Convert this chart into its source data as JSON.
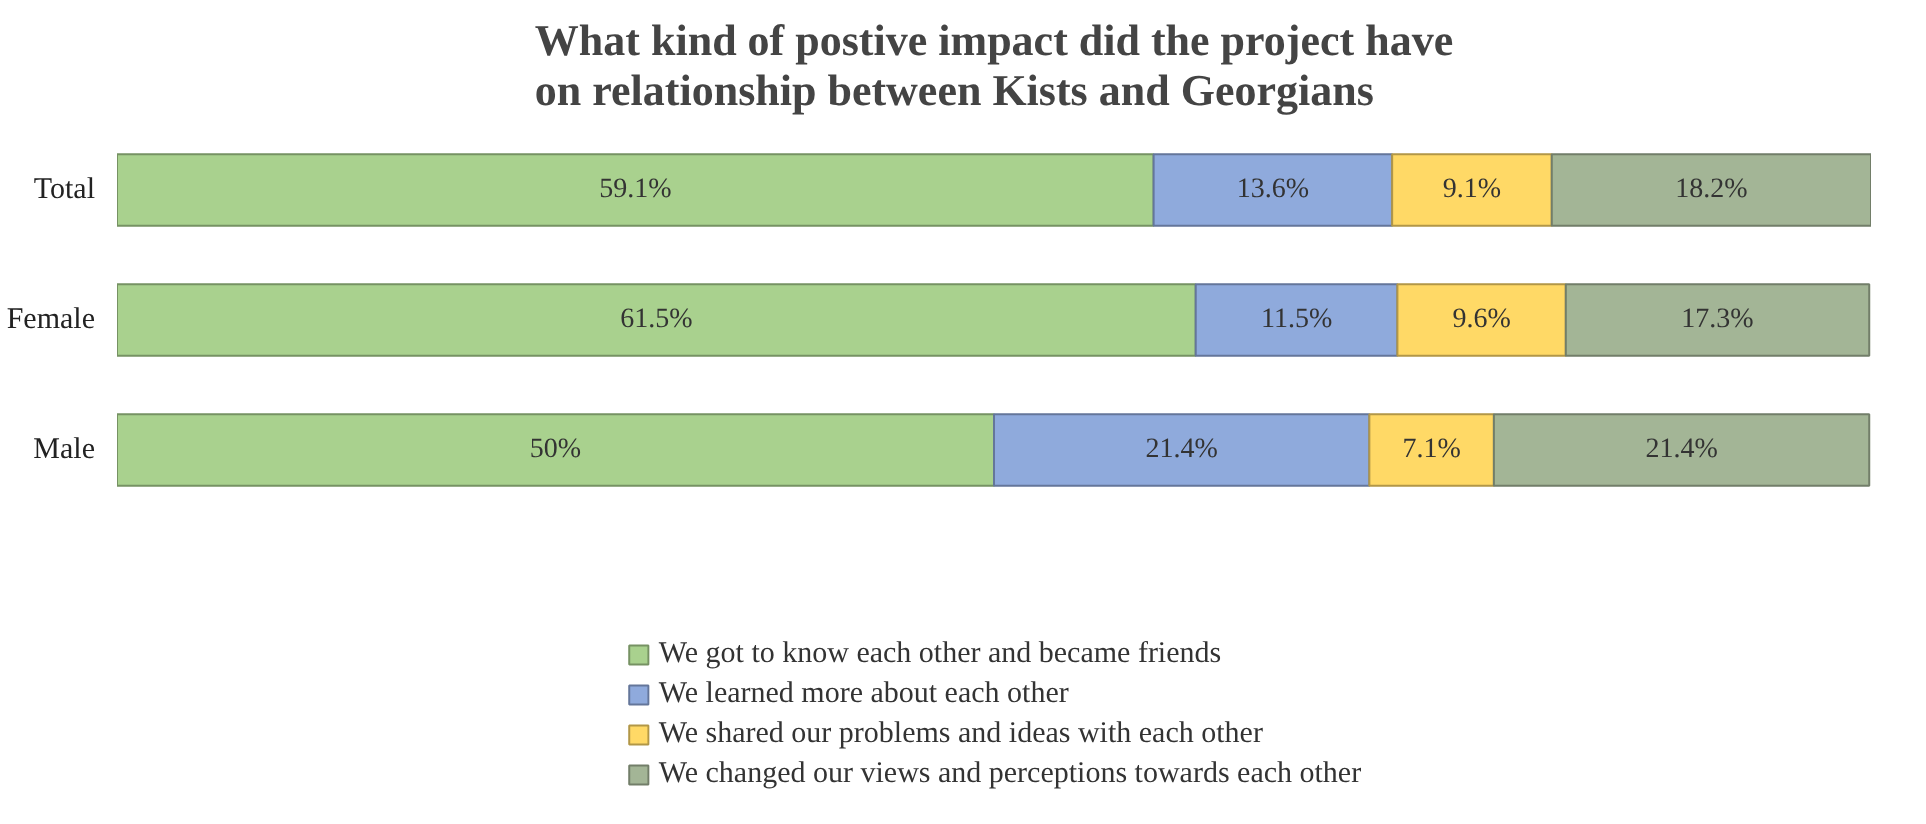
{
  "chart_data": {
    "type": "bar",
    "orientation": "horizontal",
    "stacked": true,
    "title": "What kind of postive impact did the project have on relationship between Kists and Georgians",
    "categories": [
      "Total",
      "Female",
      "Male"
    ],
    "legend": "bottom",
    "grid": false,
    "series": [
      {
        "name": "We got to know each other and became friends",
        "color": "#a9d18e",
        "values": [
          59.1,
          61.5,
          50
        ],
        "value_labels": [
          "59.1%",
          "61.5%",
          "50%"
        ]
      },
      {
        "name": "We learned more about each other",
        "color": "#8faadc",
        "values": [
          13.6,
          11.5,
          21.4
        ],
        "value_labels": [
          "13.6%",
          "11.5%",
          "21.4%"
        ]
      },
      {
        "name": "We shared our problems and ideas with each other",
        "color": "#ffd966",
        "values": [
          9.1,
          9.6,
          7.1
        ],
        "value_labels": [
          "9.1%",
          "9.6%",
          "7.1%"
        ]
      },
      {
        "name": "We changed our views and perceptions towards each other",
        "color": "#a3b596",
        "values": [
          18.2,
          17.3,
          21.4
        ],
        "value_labels": [
          "18.2%",
          "17.3%",
          "21.4%"
        ]
      }
    ]
  }
}
